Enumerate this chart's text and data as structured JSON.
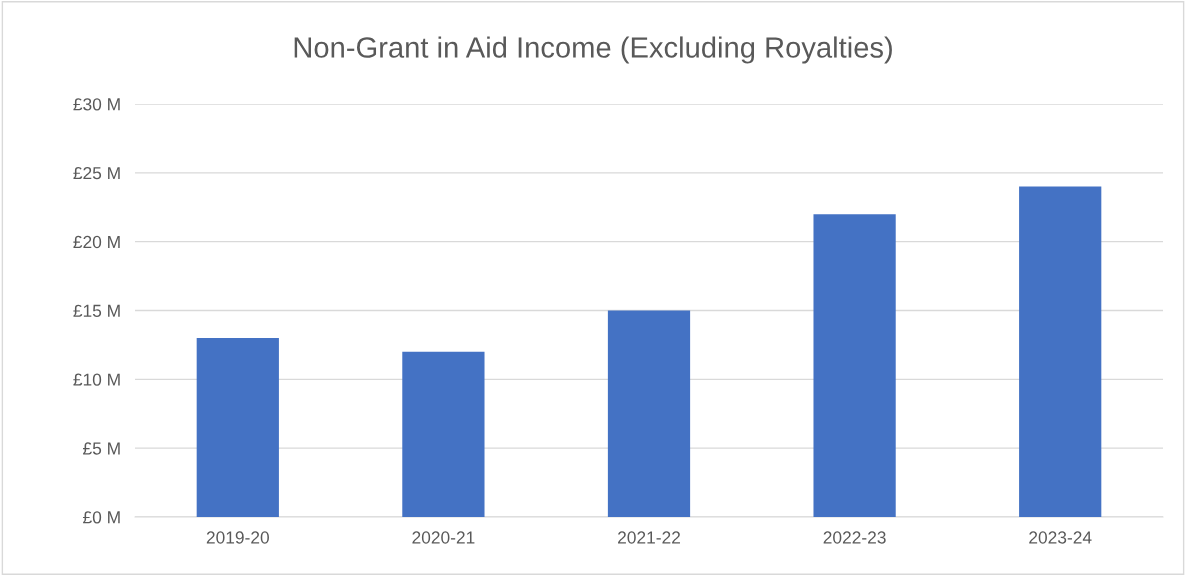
{
  "chart_data": {
    "type": "bar",
    "title": "Non-Grant in Aid Income (Excluding Royalties)",
    "categories": [
      "2019-20",
      "2020-21",
      "2021-22",
      "2022-23",
      "2023-24"
    ],
    "values": [
      13,
      12,
      15,
      22,
      24
    ],
    "color": "#4472c4",
    "ylim": [
      0,
      30
    ],
    "yticks": [
      {
        "value": 0,
        "label": "£0 M"
      },
      {
        "value": 5,
        "label": "£5 M"
      },
      {
        "value": 10,
        "label": "£10 M"
      },
      {
        "value": 15,
        "label": "£15 M"
      },
      {
        "value": 20,
        "label": "£20 M"
      },
      {
        "value": 25,
        "label": "£25 M"
      },
      {
        "value": 30,
        "label": "£30 M"
      }
    ],
    "grid": "y"
  }
}
